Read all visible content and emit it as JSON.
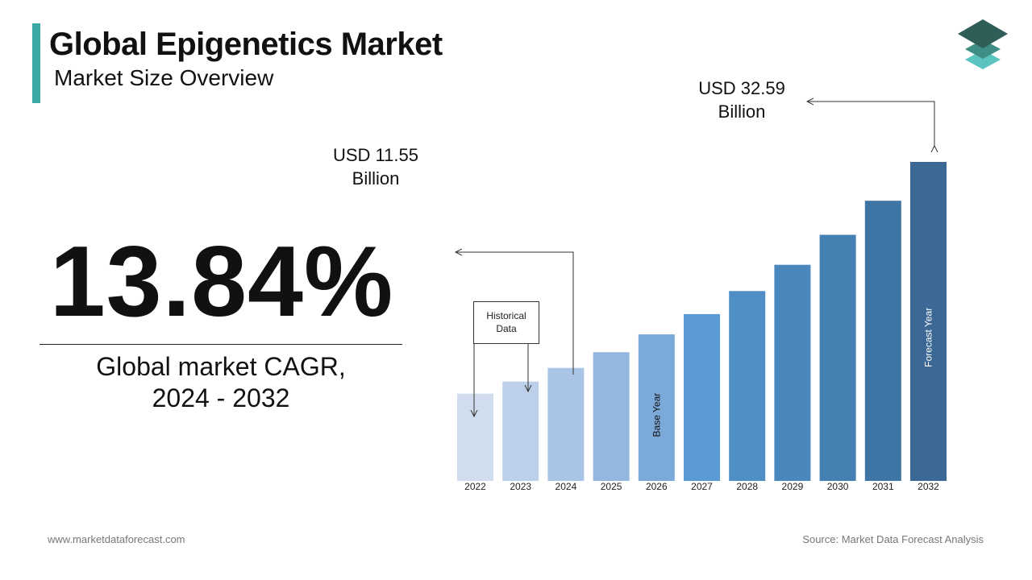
{
  "header": {
    "title": "Global Epigenetics Market",
    "subtitle": "Market Size Overview"
  },
  "cagr": {
    "value": "13.84%",
    "caption_line1": "Global market CAGR,",
    "caption_line2": "2024 - 2032"
  },
  "callouts": {
    "y2024_line1": "USD 11.55",
    "y2024_line2": "Billion",
    "y2032_line1": "USD 32.59",
    "y2032_line2": "Billion"
  },
  "historical_box": {
    "line1": "Historical",
    "line2": "Data"
  },
  "footer": {
    "website": "www.marketdataforecast.com",
    "source": "Source: Market Data Forecast Analysis"
  },
  "colors": {
    "accent": "#3aa9a4",
    "logo_top": "#2f5d57",
    "logo_mid": "#3e8e86",
    "logo_bottom": "#5cc4c0"
  },
  "icons": {
    "logo": "stacked-layers-icon"
  },
  "chart_data": {
    "type": "bar",
    "categories": [
      "2022",
      "2023",
      "2024",
      "2025",
      "2026",
      "2027",
      "2028",
      "2029",
      "2030",
      "2031",
      "2032"
    ],
    "values": [
      8.91,
      10.15,
      11.55,
      13.15,
      14.97,
      17.04,
      19.4,
      22.08,
      25.14,
      28.62,
      32.59
    ],
    "colors": [
      "#d0ddef",
      "#bcd0ea",
      "#a9c4e6",
      "#93b7df",
      "#7ba9da",
      "#5b9bd5",
      "#4f8fc6",
      "#4a87bd",
      "#4580b3",
      "#3f75a5",
      "#3b6894"
    ],
    "bar_annotations": [
      {
        "category": "2026",
        "label": "Base Year"
      },
      {
        "category": "2032",
        "label": "Forecast Year"
      }
    ],
    "legend": "none",
    "grid": false,
    "title": "",
    "xlabel": "",
    "ylabel": ""
  }
}
